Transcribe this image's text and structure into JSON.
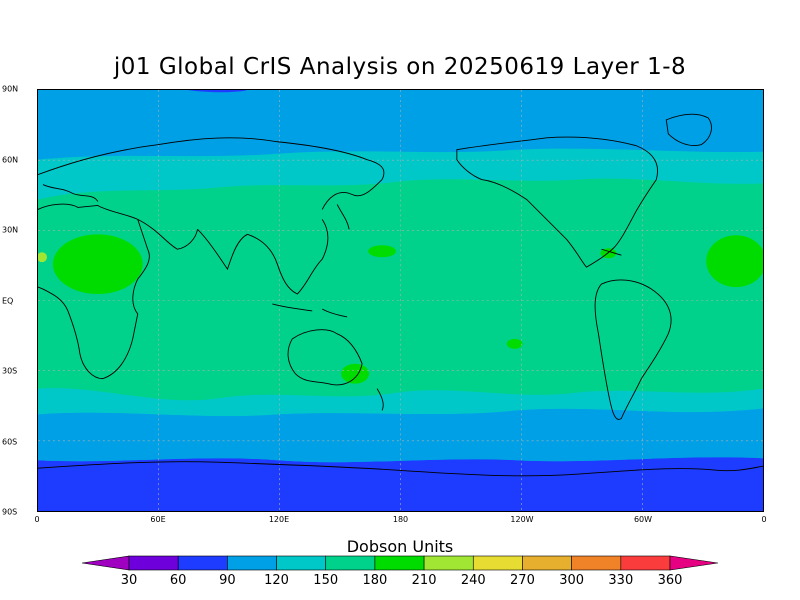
{
  "title": "j01 Global CrIS Analysis on 20250619 Layer 1-8",
  "lat_labels": [
    "90N",
    "60N",
    "30N",
    "EQ",
    "30S",
    "60S",
    "90S"
  ],
  "lon_labels": [
    "0",
    "60E",
    "120E",
    "180",
    "120W",
    "60W",
    "0"
  ],
  "colorbar": {
    "title": "Dobson Units",
    "levels": [
      "30",
      "60",
      "90",
      "120",
      "150",
      "180",
      "210",
      "240",
      "270",
      "300",
      "330",
      "360"
    ],
    "colors": [
      "#a000c0",
      "#6e00dc",
      "#1e3cff",
      "#00a0e6",
      "#00c8c8",
      "#00d28c",
      "#00dc00",
      "#a0e632",
      "#e6dc32",
      "#e6af2d",
      "#f08228",
      "#fa3c3c",
      "#e60082"
    ]
  },
  "map": {
    "colors": {
      "band_60": "#1e3cff",
      "band_90": "#00a0e6",
      "band_120": "#00c8c8",
      "band_150": "#00d28c",
      "band_180": "#00dc00",
      "band_210": "#a0e632",
      "coast": "#000000",
      "grid": "#b0b0b0"
    }
  }
}
